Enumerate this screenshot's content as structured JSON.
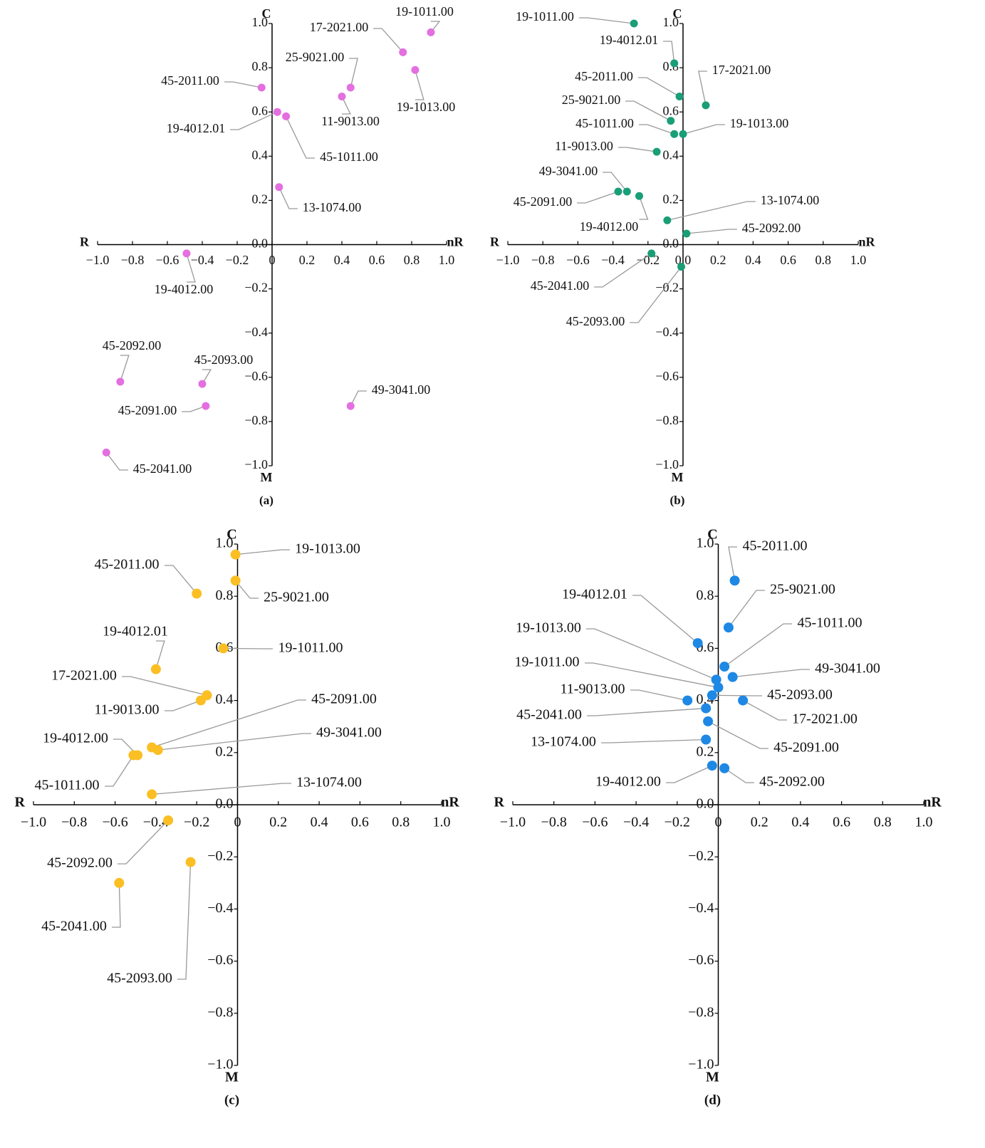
{
  "chart_data": [
    {
      "type": "scatter",
      "panel_label": "(a)",
      "x_axis_left_label": "R",
      "x_axis_right_label": "nR",
      "y_axis_top_label": "C",
      "y_axis_bottom_label": "M",
      "color": "#e36fe0",
      "point_labels": [
        "19-1011.00",
        "17-2021.00",
        "25-9021.00",
        "19-1013.00",
        "45-2011.00",
        "11-9013.00",
        "19-4012.01",
        "45-1011.00",
        "13-1074.00",
        "19-4012.00",
        "45-2092.00",
        "45-2093.00",
        "45-2091.00",
        "49-3041.00",
        "45-2041.00"
      ],
      "x": [
        0.91,
        0.75,
        0.45,
        0.82,
        -0.06,
        0.4,
        0.03,
        0.08,
        0.04,
        -0.49,
        -0.87,
        -0.4,
        -0.38,
        0.45,
        -0.95
      ],
      "y": [
        0.96,
        0.87,
        0.71,
        0.79,
        0.71,
        0.67,
        0.6,
        0.58,
        0.26,
        -0.04,
        -0.62,
        -0.63,
        -0.73,
        -0.73,
        -0.94
      ],
      "xlim": [
        -1.0,
        1.0
      ],
      "ylim": [
        -1.0,
        1.0
      ],
      "xticks": [
        {
          "value": -1.0,
          "label": "−1.0"
        },
        {
          "value": -0.8,
          "label": "−0.8"
        },
        {
          "value": -0.6,
          "label": "−0.6"
        },
        {
          "value": -0.4,
          "label": "−0.4"
        },
        {
          "value": -0.2,
          "label": "−0.2"
        },
        0,
        0.2,
        0.4,
        0.6,
        0.8,
        {
          "value": 1.0,
          "label": "1.0"
        }
      ],
      "yticks": [
        {
          "value": -1.0,
          "label": "−1.0"
        },
        {
          "value": -0.8,
          "label": "−0.8"
        },
        {
          "value": -0.6,
          "label": "−0.6"
        },
        {
          "value": -0.4,
          "label": "−0.4"
        },
        {
          "value": -0.2,
          "label": "−0.2"
        },
        {
          "value": 0,
          "label": "0.0"
        },
        0.2,
        0.4,
        0.6,
        0.8,
        {
          "value": 1.0,
          "label": "1.0"
        }
      ]
    },
    {
      "type": "scatter",
      "panel_label": "(b)",
      "x_axis_left_label": "R",
      "x_axis_right_label": "nR",
      "y_axis_top_label": "C",
      "y_axis_bottom_label": "M",
      "color": "#1a9e77",
      "point_labels": [
        "19-1011.00",
        "19-4012.01",
        "45-2011.00",
        "17-2021.00",
        "25-9021.00",
        "45-1011.00",
        "19-1013.00",
        "11-9013.00",
        "49-3041.00",
        "45-2091.00",
        "19-4012.00",
        "13-1074.00",
        "45-2092.00",
        "45-2041.00",
        "45-2093.00"
      ],
      "x": [
        -0.28,
        -0.05,
        -0.02,
        0.13,
        -0.07,
        -0.05,
        0.0,
        -0.15,
        -0.32,
        -0.37,
        -0.25,
        -0.09,
        0.02,
        -0.18,
        -0.01
      ],
      "y": [
        1.0,
        0.82,
        0.67,
        0.63,
        0.56,
        0.5,
        0.5,
        0.42,
        0.24,
        0.24,
        0.22,
        0.11,
        0.05,
        -0.04,
        -0.1
      ],
      "xlim": [
        -1.0,
        1.0
      ],
      "ylim": [
        -1.0,
        1.0
      ],
      "xticks": [
        {
          "value": -1.0,
          "label": "−1.0"
        },
        {
          "value": -0.8,
          "label": "−0.8"
        },
        {
          "value": -0.6,
          "label": "−0.6"
        },
        {
          "value": -0.4,
          "label": "−0.4"
        },
        {
          "value": -0.2,
          "label": "−0.2"
        },
        {
          "value": 0,
          "label": "0.0"
        },
        0.2,
        0.4,
        0.6,
        0.8,
        {
          "value": 1.0,
          "label": "1.0"
        }
      ],
      "yticks": [
        {
          "value": -1.0,
          "label": "−1.0"
        },
        {
          "value": -0.8,
          "label": "−0.8"
        },
        {
          "value": -0.6,
          "label": "−0.6"
        },
        {
          "value": -0.4,
          "label": "−0.4"
        },
        {
          "value": -0.2,
          "label": "−0.2"
        },
        {
          "value": 0,
          "label": "0.0"
        },
        0.2,
        0.4,
        0.6,
        0.8,
        {
          "value": 1.0,
          "label": "1.0"
        }
      ]
    },
    {
      "type": "scatter",
      "panel_label": "(c)",
      "x_axis_left_label": "R",
      "x_axis_right_label": "nR",
      "y_axis_top_label": "C",
      "y_axis_bottom_label": "M",
      "color": "#fbbf24",
      "point_labels": [
        "19-1013.00",
        "25-9021.00",
        "45-2011.00",
        "19-1011.00",
        "19-4012.01",
        "17-2021.00",
        "11-9013.00",
        "45-2091.00",
        "49-3041.00",
        "19-4012.00",
        "45-1011.00",
        "13-1074.00",
        "45-2092.00",
        "45-2093.00",
        "45-2041.00"
      ],
      "x": [
        -0.01,
        -0.01,
        -0.2,
        -0.07,
        -0.4,
        -0.15,
        -0.18,
        -0.42,
        -0.39,
        -0.49,
        -0.51,
        -0.42,
        -0.34,
        -0.23,
        -0.58
      ],
      "y": [
        0.96,
        0.86,
        0.81,
        0.6,
        0.52,
        0.42,
        0.4,
        0.22,
        0.21,
        0.19,
        0.19,
        0.04,
        -0.06,
        -0.22,
        -0.3
      ],
      "xlim": [
        -1.0,
        1.0
      ],
      "ylim": [
        -1.0,
        1.0
      ],
      "xticks": [
        {
          "value": -1.0,
          "label": "−1.0"
        },
        {
          "value": -0.8,
          "label": "−0.8"
        },
        {
          "value": -0.6,
          "label": "−0.6"
        },
        {
          "value": -0.4,
          "label": "−0.4"
        },
        {
          "value": -0.2,
          "label": "−0.2"
        },
        0,
        0.2,
        0.4,
        0.6,
        0.8,
        {
          "value": 1.0,
          "label": "1.0"
        }
      ],
      "yticks": [
        {
          "value": -1.0,
          "label": "−1.0"
        },
        {
          "value": -0.8,
          "label": "−0.8"
        },
        {
          "value": -0.6,
          "label": "−0.6"
        },
        {
          "value": -0.4,
          "label": "−0.4"
        },
        {
          "value": -0.2,
          "label": "−0.2"
        },
        {
          "value": 0,
          "label": "0.0"
        },
        0.2,
        0.4,
        0.6,
        0.8,
        {
          "value": 1.0,
          "label": "1.0"
        }
      ]
    },
    {
      "type": "scatter",
      "panel_label": "(d)",
      "x_axis_left_label": "R",
      "x_axis_right_label": "nR",
      "y_axis_top_label": "C",
      "y_axis_bottom_label": "M",
      "color": "#1e88e5",
      "point_labels": [
        "45-2011.00",
        "25-9021.00",
        "19-4012.01",
        "45-1011.00",
        "19-1013.00",
        "49-3041.00",
        "19-1011.00",
        "45-2093.00",
        "11-9013.00",
        "17-2021.00",
        "45-2041.00",
        "45-2091.00",
        "13-1074.00",
        "19-4012.00",
        "45-2092.00"
      ],
      "x": [
        0.08,
        0.05,
        -0.1,
        0.03,
        -0.01,
        0.07,
        0.0,
        -0.03,
        -0.15,
        0.12,
        -0.06,
        -0.05,
        -0.06,
        -0.03,
        0.03
      ],
      "y": [
        0.86,
        0.68,
        0.62,
        0.53,
        0.48,
        0.49,
        0.45,
        0.42,
        0.4,
        0.4,
        0.37,
        0.32,
        0.25,
        0.15,
        0.14
      ],
      "xlim": [
        -1.0,
        1.0
      ],
      "ylim": [
        -1.0,
        1.0
      ],
      "xticks": [
        {
          "value": -1.0,
          "label": "−1.0"
        },
        {
          "value": -0.8,
          "label": "−0.8"
        },
        {
          "value": -0.6,
          "label": "−0.6"
        },
        {
          "value": -0.4,
          "label": "−0.4"
        },
        {
          "value": -0.2,
          "label": "−0.2"
        },
        0,
        0.2,
        0.4,
        0.6,
        0.8,
        {
          "value": 1.0,
          "label": "1.0"
        }
      ],
      "yticks": [
        {
          "value": -1.0,
          "label": "−1.0"
        },
        {
          "value": -0.8,
          "label": "−0.8"
        },
        {
          "value": -0.6,
          "label": "−0.6"
        },
        {
          "value": -0.4,
          "label": "−0.4"
        },
        {
          "value": -0.2,
          "label": "−0.2"
        },
        {
          "value": 0,
          "label": "0.0"
        },
        0.2,
        0.4,
        0.6,
        0.8,
        {
          "value": 1.0,
          "label": "1.0"
        }
      ]
    }
  ]
}
